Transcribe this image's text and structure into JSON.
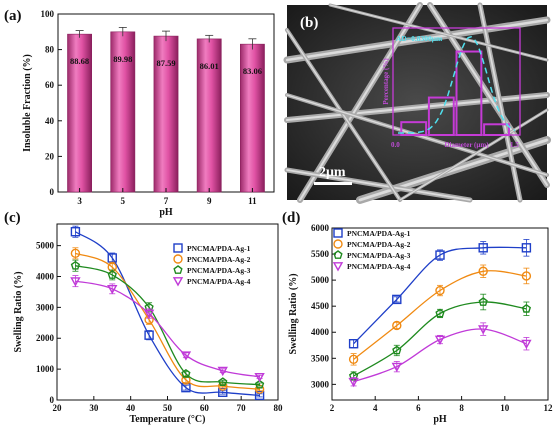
{
  "colors": {
    "bar_fill": "#e052a4",
    "bar_edge": "#8a1f5c",
    "series1": "#1f3fc8",
    "series2": "#f08a12",
    "series3": "#1f8a1f",
    "series4": "#c03ad8",
    "sem_overlay": "#c53bd6",
    "sem_fit": "#4fe0ee"
  },
  "chart_data": [
    {
      "panel": "(a)",
      "type": "bar",
      "categories": [
        "3",
        "5",
        "7",
        "9",
        "11"
      ],
      "values": [
        88.68,
        89.98,
        87.59,
        86.01,
        83.06
      ],
      "errors": [
        2.0,
        2.5,
        2.8,
        2.0,
        3.0
      ],
      "data_labels": [
        "88.68",
        "89.98",
        "87.59",
        "86.01",
        "83.06"
      ],
      "xlabel": "pH",
      "ylabel": "Insoluble Fraction (%)",
      "ylim": [
        0,
        100
      ],
      "yticks": [
        "0",
        "20",
        "40",
        "60",
        "80",
        "100"
      ]
    },
    {
      "panel": "(b)",
      "type": "image",
      "annotation": "AD=0.8300μm",
      "scale_bar": "2μm",
      "inset_xlabel": "Diameter (μm)",
      "inset_ylabel": "Percentage (%)",
      "inset_tick_start": "0.0",
      "inset_tick_end": "1.5",
      "inset_hist": [
        0.12,
        0.35,
        0.78,
        0.1
      ]
    },
    {
      "panel": "(c)",
      "type": "line",
      "xlabel": "Temperature (°C)",
      "ylabel": "Swelling Ratio (%)",
      "xlim": [
        20,
        80
      ],
      "ylim": [
        0,
        5700
      ],
      "xticks": [
        "20",
        "30",
        "40",
        "50",
        "60",
        "70",
        "80"
      ],
      "yticks": [
        "0",
        "1000",
        "2000",
        "3000",
        "4000",
        "5000"
      ],
      "x": [
        25,
        35,
        45,
        55,
        65,
        75
      ],
      "legend_position": "right",
      "series": [
        {
          "name": "PNCMA/PDA-Ag-1",
          "marker": "square",
          "values": [
            5450,
            4600,
            2100,
            400,
            250,
            150
          ],
          "errors": [
            180,
            160,
            150,
            80,
            60,
            50
          ]
        },
        {
          "name": "PNCMA/PDA-Ag-2",
          "marker": "circle",
          "values": [
            4750,
            4300,
            2600,
            650,
            450,
            350
          ],
          "errors": [
            180,
            160,
            150,
            80,
            60,
            50
          ]
        },
        {
          "name": "PNCMA/PDA-Ag-3",
          "marker": "pentagon",
          "values": [
            4350,
            4050,
            3000,
            850,
            580,
            500
          ],
          "errors": [
            180,
            160,
            150,
            80,
            60,
            50
          ]
        },
        {
          "name": "PNCMA/PDA-Ag-4",
          "marker": "triangle-down",
          "values": [
            3850,
            3600,
            2800,
            1450,
            950,
            750
          ],
          "errors": [
            180,
            160,
            150,
            80,
            60,
            50
          ]
        }
      ]
    },
    {
      "panel": "(d)",
      "type": "line",
      "xlabel": "pH",
      "ylabel": "Swelling Ratio (%)",
      "xlim": [
        2,
        12
      ],
      "ylim": [
        2700,
        6000
      ],
      "xticks": [
        "2",
        "4",
        "6",
        "8",
        "10",
        "12"
      ],
      "yticks": [
        "3000",
        "3500",
        "4000",
        "4500",
        "5000",
        "5500",
        "6000"
      ],
      "x": [
        3,
        5,
        7,
        9,
        11
      ],
      "legend_position": "top-left",
      "series": [
        {
          "name": "PNCMA/PDA-Ag-1",
          "marker": "square",
          "values": [
            3780,
            4630,
            5480,
            5620,
            5620
          ],
          "errors": [
            80,
            50,
            100,
            120,
            160
          ]
        },
        {
          "name": "PNCMA/PDA-Ag-2",
          "marker": "circle",
          "values": [
            3480,
            4130,
            4800,
            5170,
            5080
          ],
          "errors": [
            110,
            60,
            100,
            120,
            150
          ]
        },
        {
          "name": "PNCMA/PDA-Ag-3",
          "marker": "pentagon",
          "values": [
            3160,
            3650,
            4360,
            4580,
            4450
          ],
          "errors": [
            80,
            100,
            80,
            150,
            130
          ]
        },
        {
          "name": "PNCMA/PDA-Ag-4",
          "marker": "triangle-down",
          "values": [
            3050,
            3340,
            3860,
            4060,
            3780
          ],
          "errors": [
            80,
            100,
            80,
            120,
            120
          ]
        }
      ]
    }
  ]
}
